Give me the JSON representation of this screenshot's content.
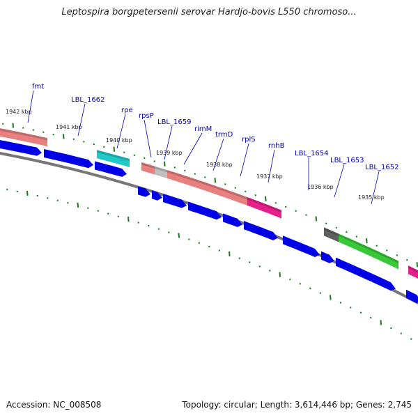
{
  "title": "Leptospira borgpetersenii serovar Hardjo-bovis L550 chromoso...",
  "footer": {
    "accession": "Accession: NC_008508",
    "summary": "Topology: circular; Length: 3,614,446 bp; Genes: 2,745"
  },
  "colors": {
    "backbone": "#777777",
    "tick": "#1c7a1c",
    "gene_label": "#0000b4",
    "leader": "#0000b4",
    "strand_blue": "#0000e6",
    "cog_salmon": "#e88080",
    "cog_cyan": "#20c8c8",
    "cog_magenta": "#e6208a",
    "cog_green": "#38c838",
    "cog_gray": "#606060",
    "cog_lightgray": "#c0c0c0"
  },
  "kbp_labels": [
    "1942 kbp",
    "1941 kbp",
    "1940 kbp",
    "1939 kbp",
    "1938 kbp",
    "1937 kbp",
    "1936 kbp",
    "1935 kbp"
  ],
  "gene_labels": [
    "fmt",
    "LBL_1662",
    "rpe",
    "rpsP",
    "LBL_1659",
    "rimM",
    "trmD",
    "rplS",
    "rnhB",
    "LBL_1654",
    "LBL_1653",
    "LBL_1652"
  ],
  "cog_features": [
    {
      "color": "cog_salmon"
    },
    {
      "color": "cog_cyan"
    },
    {
      "color": "cog_salmon"
    },
    {
      "color": "cog_lightgray"
    },
    {
      "color": "cog_salmon"
    },
    {
      "color": "cog_magenta"
    },
    {
      "color": "cog_gray"
    },
    {
      "color": "cog_green"
    },
    {
      "color": "cog_magenta"
    }
  ]
}
